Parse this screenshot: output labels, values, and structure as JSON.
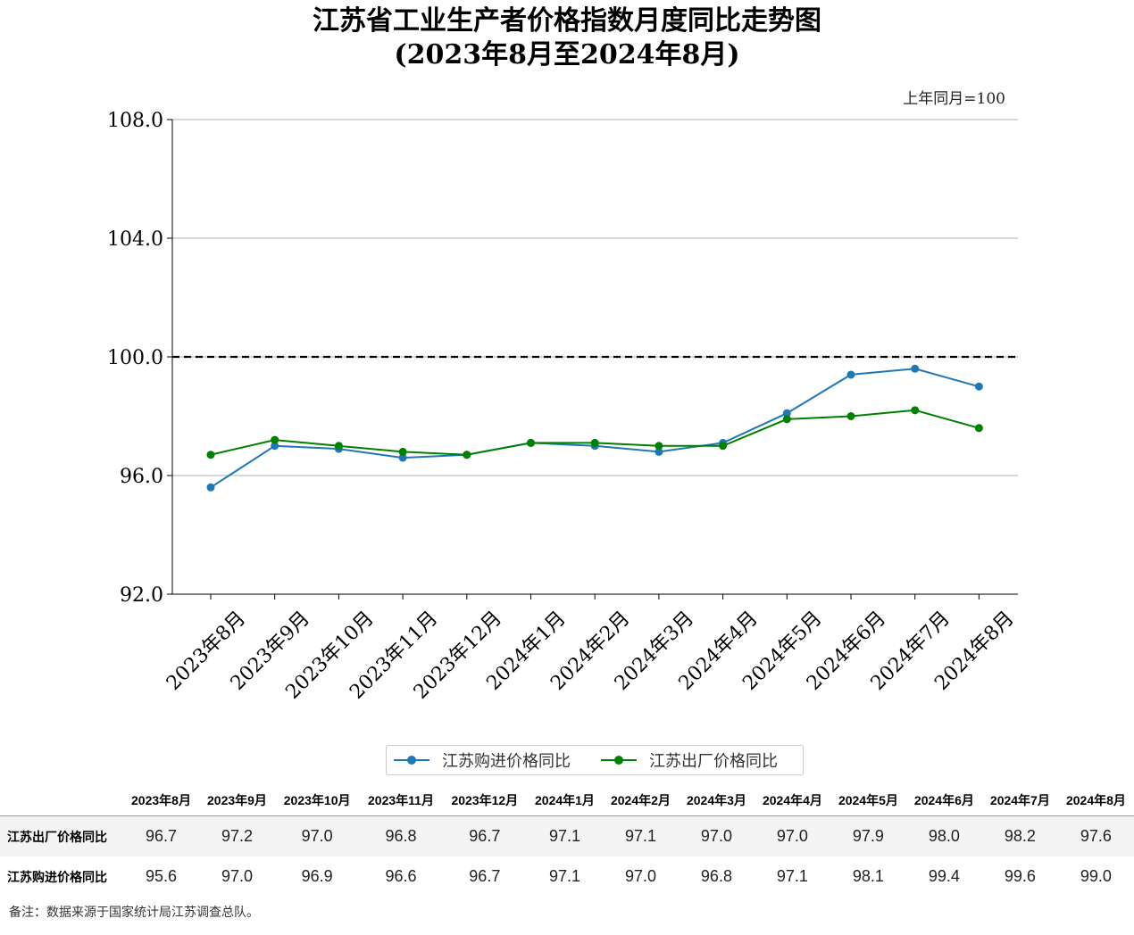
{
  "chart_data": {
    "type": "line",
    "title": "江苏省工业生产者价格指数月度同比走势图",
    "subtitle": "(2023年8月至2024年8月)",
    "annotation": "上年同月=100",
    "categories": [
      "2023年8月",
      "2023年9月",
      "2023年10月",
      "2023年11月",
      "2023年12月",
      "2024年1月",
      "2024年2月",
      "2024年3月",
      "2024年4月",
      "2024年5月",
      "2024年6月",
      "2024年7月",
      "2024年8月"
    ],
    "ylim": [
      92.0,
      108.0
    ],
    "yticks": [
      "92.0",
      "96.0",
      "100.0",
      "104.0",
      "108.0"
    ],
    "reference_line": 100.0,
    "grid": "horizontal",
    "legend_position": "bottom",
    "series": [
      {
        "name": "江苏购进价格同比",
        "color": "#1f77b4",
        "values": [
          95.6,
          97.0,
          96.9,
          96.6,
          96.7,
          97.1,
          97.0,
          96.8,
          97.1,
          98.1,
          99.4,
          99.6,
          99.0
        ]
      },
      {
        "name": "江苏出厂价格同比",
        "color": "#008000",
        "values": [
          96.7,
          97.2,
          97.0,
          96.8,
          96.7,
          97.1,
          97.1,
          97.0,
          97.0,
          97.9,
          98.0,
          98.2,
          97.6
        ]
      }
    ]
  },
  "table": {
    "headers": [
      "2023年8月",
      "2023年9月",
      "2023年10月",
      "2023年11月",
      "2023年12月",
      "2024年1月",
      "2024年2月",
      "2024年3月",
      "2024年4月",
      "2024年5月",
      "2024年6月",
      "2024年7月",
      "2024年8月"
    ],
    "rows": [
      {
        "label": "江苏出厂价格同比",
        "values": [
          "96.7",
          "97.2",
          "97.0",
          "96.8",
          "96.7",
          "97.1",
          "97.1",
          "97.0",
          "97.0",
          "97.9",
          "98.0",
          "98.2",
          "97.6"
        ]
      },
      {
        "label": "江苏购进价格同比",
        "values": [
          "95.6",
          "97.0",
          "96.9",
          "96.6",
          "96.7",
          "97.1",
          "97.0",
          "96.8",
          "97.1",
          "98.1",
          "99.4",
          "99.6",
          "99.0"
        ]
      }
    ]
  },
  "note": "备注：数据来源于国家统计局江苏调查总队。"
}
